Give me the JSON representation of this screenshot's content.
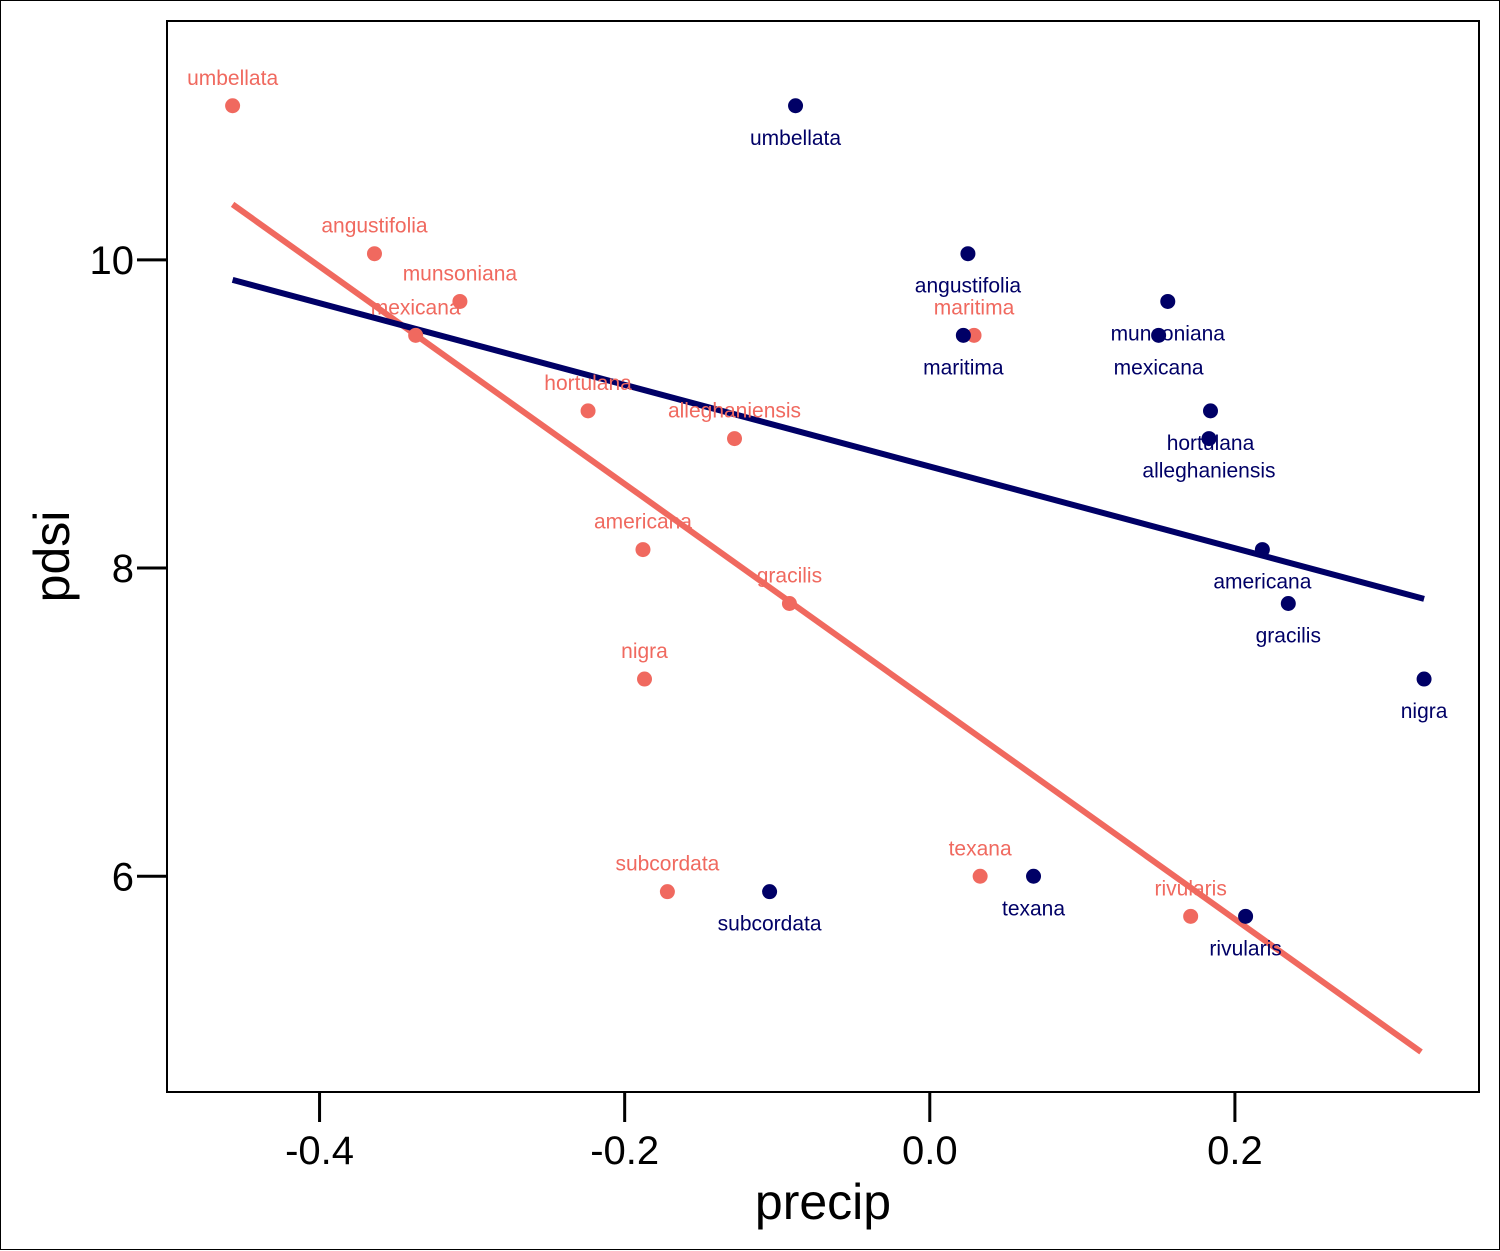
{
  "chart_data": {
    "type": "scatter",
    "xlabel": "precip",
    "ylabel": "pdsi",
    "xlim": [
      -0.5,
      0.36
    ],
    "ylim": [
      4.6,
      11.55
    ],
    "x_ticks": [
      -0.4,
      -0.2,
      0.0,
      0.2
    ],
    "x_tick_labels": [
      "-0.4",
      "-0.2",
      "0.0",
      "0.2"
    ],
    "y_ticks": [
      6,
      8,
      10
    ],
    "y_tick_labels": [
      "6",
      "8",
      "10"
    ],
    "grid": false,
    "legend": "none",
    "series": [
      {
        "color": "#f0695f",
        "label_position": "above",
        "points": [
          {
            "label": "umbellata",
            "x": -0.457,
            "y": 11.0
          },
          {
            "label": "angustifolia",
            "x": -0.364,
            "y": 10.04
          },
          {
            "label": "munsoniana",
            "x": -0.308,
            "y": 9.73
          },
          {
            "label": "mexicana",
            "x": -0.337,
            "y": 9.51
          },
          {
            "label": "hortulana",
            "x": -0.224,
            "y": 9.02
          },
          {
            "label": "alleghaniensis",
            "x": -0.128,
            "y": 8.84
          },
          {
            "label": "americana",
            "x": -0.188,
            "y": 8.12
          },
          {
            "label": "gracilis",
            "x": -0.092,
            "y": 7.77
          },
          {
            "label": "nigra",
            "x": -0.187,
            "y": 7.28
          },
          {
            "label": "maritima",
            "x": 0.029,
            "y": 9.51
          },
          {
            "label": "subcordata",
            "x": -0.172,
            "y": 5.9
          },
          {
            "label": "texana",
            "x": 0.033,
            "y": 6.0
          },
          {
            "label": "rivularis",
            "x": 0.171,
            "y": 5.74
          }
        ],
        "fit_line": {
          "x": [
            -0.457,
            0.322
          ],
          "y": [
            10.36,
            4.86
          ]
        }
      },
      {
        "color": "#000066",
        "label_position": "below",
        "points": [
          {
            "label": "umbellata",
            "x": -0.088,
            "y": 11.0
          },
          {
            "label": "angustifolia",
            "x": 0.025,
            "y": 10.04
          },
          {
            "label": "maritima",
            "x": 0.022,
            "y": 9.51
          },
          {
            "label": "munsoniana",
            "x": 0.156,
            "y": 9.73
          },
          {
            "label": "mexicana",
            "x": 0.15,
            "y": 9.51
          },
          {
            "label": "hortulana",
            "x": 0.184,
            "y": 9.02
          },
          {
            "label": "alleghaniensis",
            "x": 0.183,
            "y": 8.84
          },
          {
            "label": "americana",
            "x": 0.218,
            "y": 8.12
          },
          {
            "label": "gracilis",
            "x": 0.235,
            "y": 7.77
          },
          {
            "label": "nigra",
            "x": 0.324,
            "y": 7.28
          },
          {
            "label": "subcordata",
            "x": -0.105,
            "y": 5.9
          },
          {
            "label": "texana",
            "x": 0.068,
            "y": 6.0
          },
          {
            "label": "rivularis",
            "x": 0.207,
            "y": 5.74
          }
        ],
        "fit_line": {
          "x": [
            -0.457,
            0.324
          ],
          "y": [
            9.87,
            7.8
          ]
        }
      }
    ]
  }
}
